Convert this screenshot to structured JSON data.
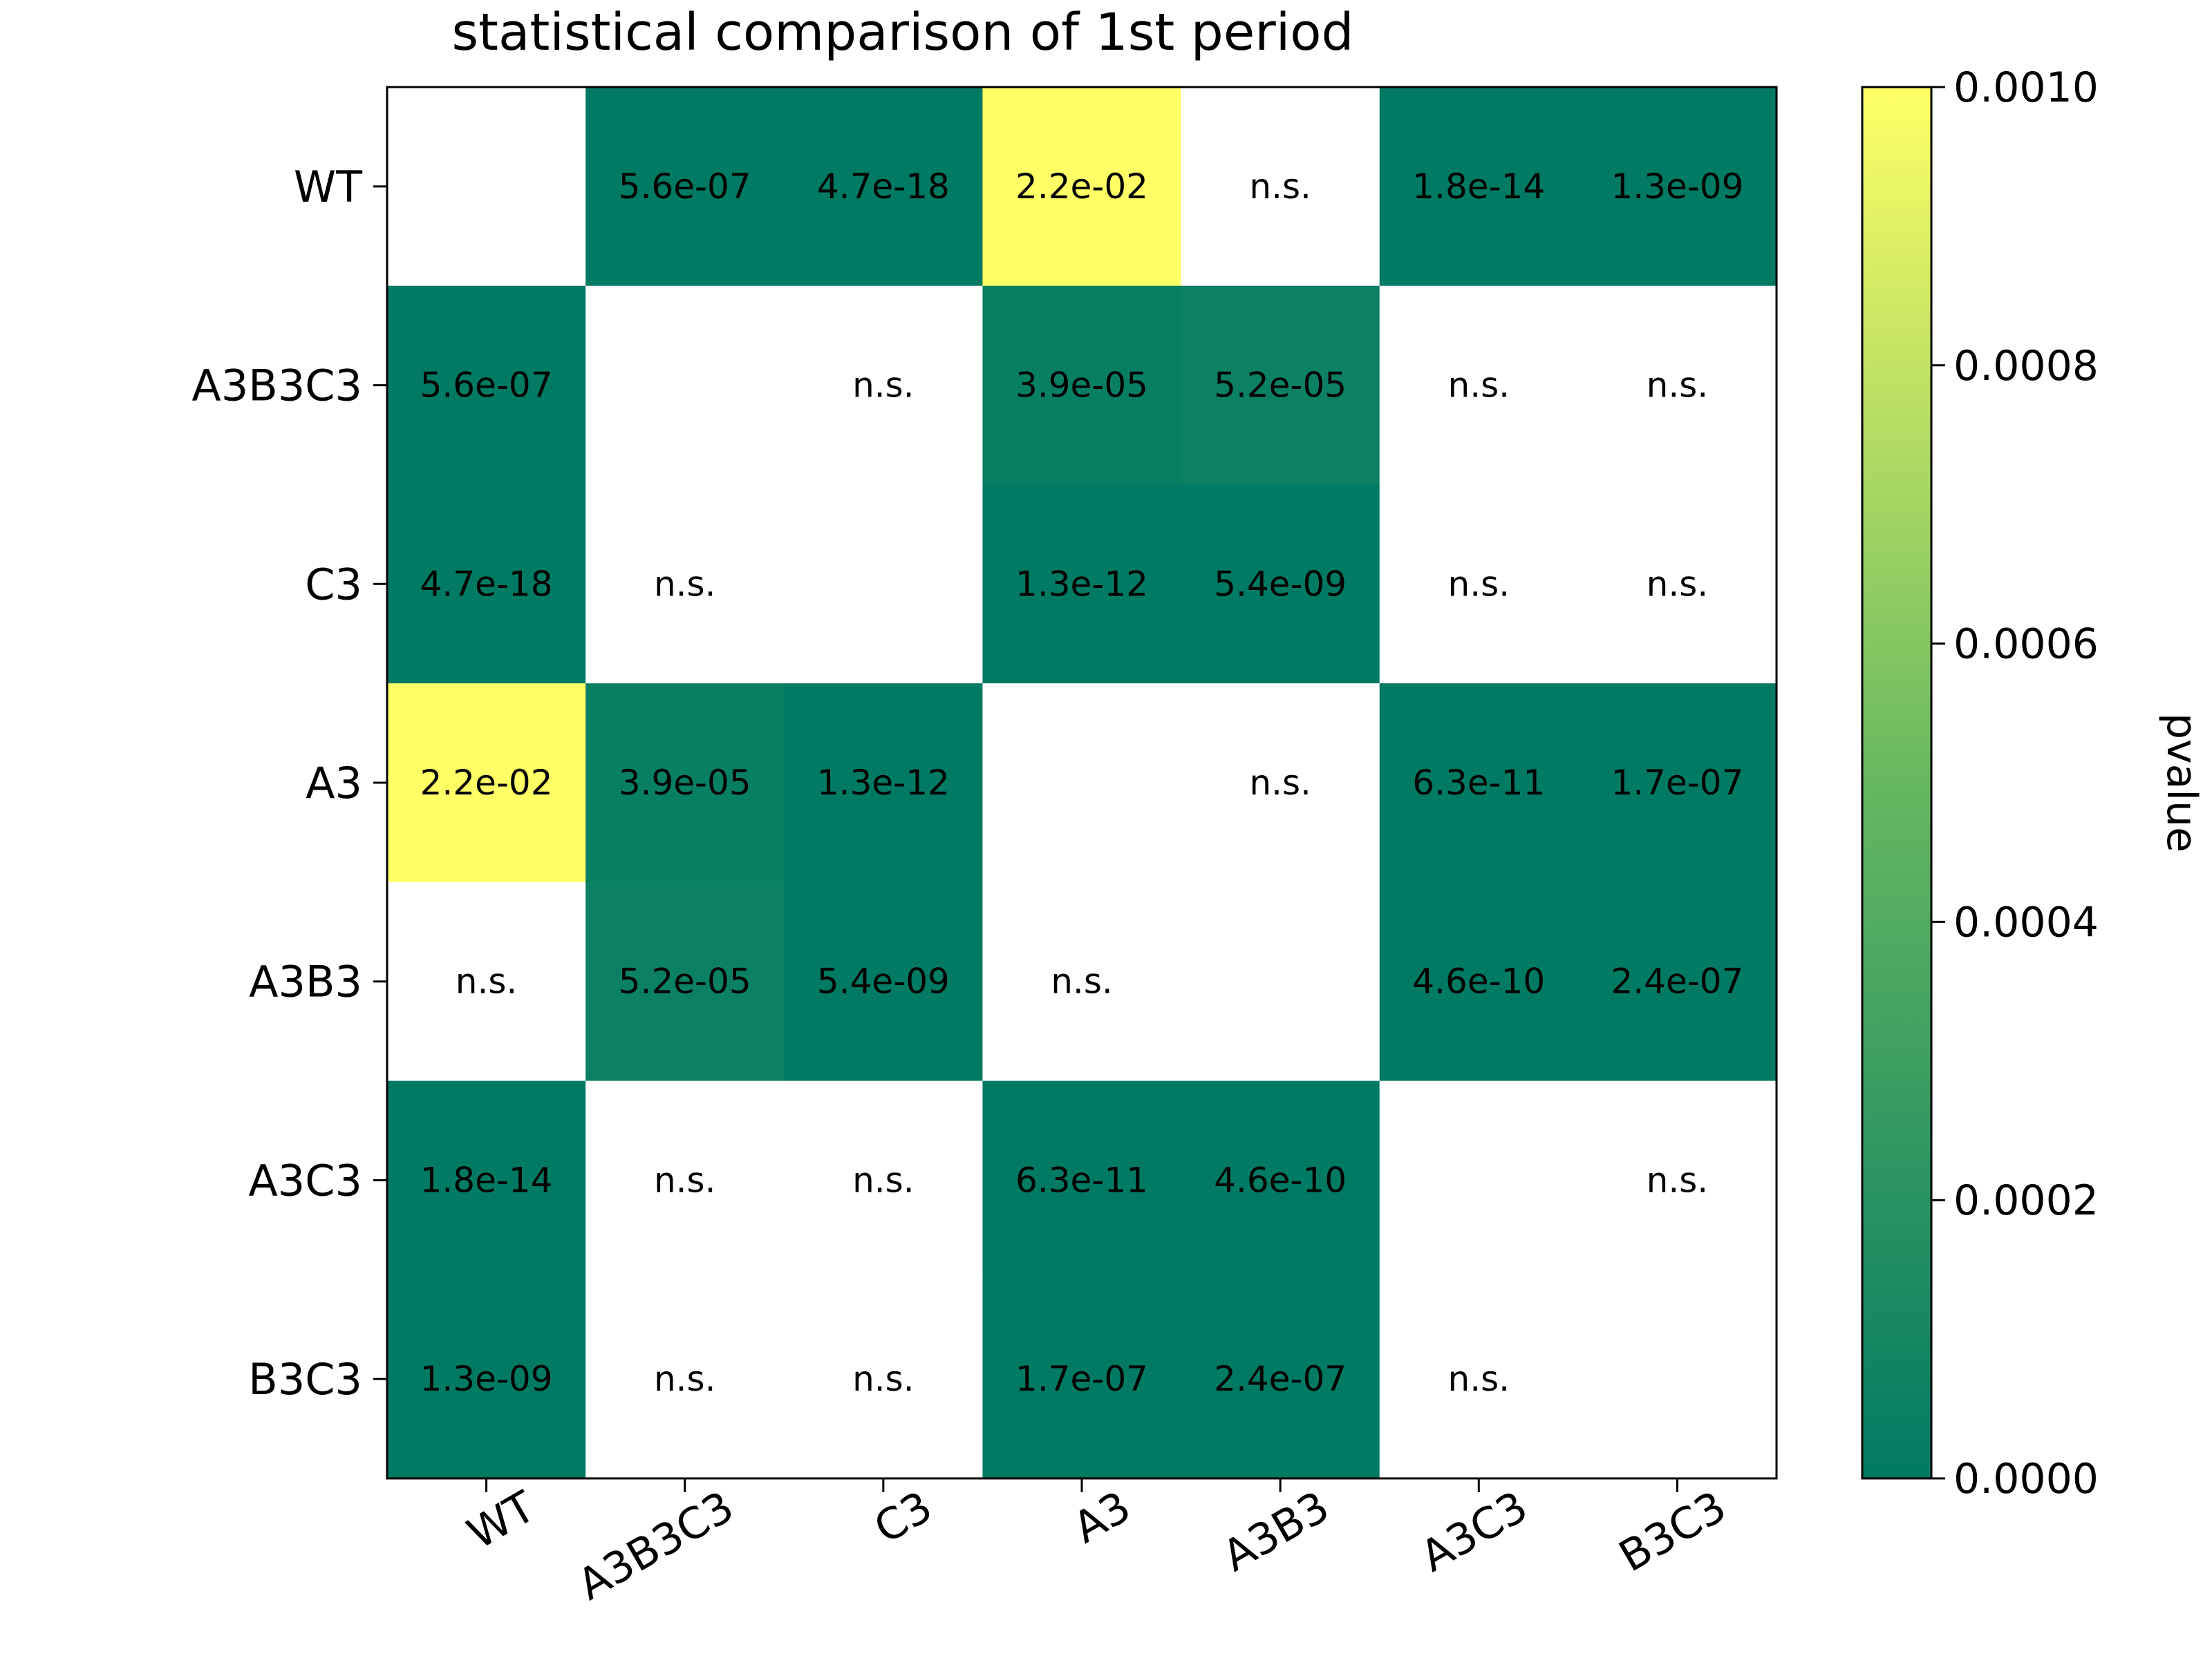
{
  "chart_data": {
    "type": "heatmap",
    "title": "statistical comparison of 1st period",
    "x_categories": [
      "WT",
      "A3B3C3",
      "C3",
      "A3",
      "A3B3",
      "A3C3",
      "B3C3"
    ],
    "y_categories": [
      "WT",
      "A3B3C3",
      "C3",
      "A3",
      "A3B3",
      "A3C3",
      "B3C3"
    ],
    "cells": [
      [
        null,
        5.6e-07,
        4.7e-18,
        0.022,
        null,
        1.8e-14,
        1.3e-09
      ],
      [
        5.6e-07,
        null,
        null,
        3.9e-05,
        5.2e-05,
        null,
        null
      ],
      [
        4.7e-18,
        null,
        null,
        1.3e-12,
        5.4e-09,
        null,
        null
      ],
      [
        0.022,
        3.9e-05,
        1.3e-12,
        null,
        null,
        6.3e-11,
        1.7e-07
      ],
      [
        null,
        5.2e-05,
        5.4e-09,
        null,
        null,
        4.6e-10,
        2.4e-07
      ],
      [
        1.8e-14,
        null,
        null,
        6.3e-11,
        4.6e-10,
        null,
        null
      ],
      [
        1.3e-09,
        null,
        null,
        1.7e-07,
        2.4e-07,
        null,
        null
      ]
    ],
    "cell_labels": [
      [
        "",
        "5.6e-07",
        "4.7e-18",
        "2.2e-02",
        "n.s.",
        "1.8e-14",
        "1.3e-09"
      ],
      [
        "5.6e-07",
        "",
        "n.s.",
        "3.9e-05",
        "5.2e-05",
        "n.s.",
        "n.s."
      ],
      [
        "4.7e-18",
        "n.s.",
        "",
        "1.3e-12",
        "5.4e-09",
        "n.s.",
        "n.s."
      ],
      [
        "2.2e-02",
        "3.9e-05",
        "1.3e-12",
        "",
        "n.s.",
        "6.3e-11",
        "1.7e-07"
      ],
      [
        "n.s.",
        "5.2e-05",
        "5.4e-09",
        "n.s.",
        "",
        "4.6e-10",
        "2.4e-07"
      ],
      [
        "1.8e-14",
        "n.s.",
        "n.s.",
        "6.3e-11",
        "4.6e-10",
        "",
        "n.s."
      ],
      [
        "1.3e-09",
        "n.s.",
        "n.s.",
        "1.7e-07",
        "2.4e-07",
        "n.s.",
        ""
      ]
    ],
    "colorbar": {
      "label": "pvalue",
      "range": [
        0,
        0.001
      ],
      "ticks": [
        0,
        0.0002,
        0.0004,
        0.0006,
        0.0008,
        0.001
      ],
      "tick_labels": [
        "0.0000",
        "0.0002",
        "0.0004",
        "0.0006",
        "0.0008",
        "0.0010"
      ],
      "color_low": "#007a63",
      "color_mid": "#66b860",
      "color_high": "#ffff66"
    },
    "grid": false
  }
}
